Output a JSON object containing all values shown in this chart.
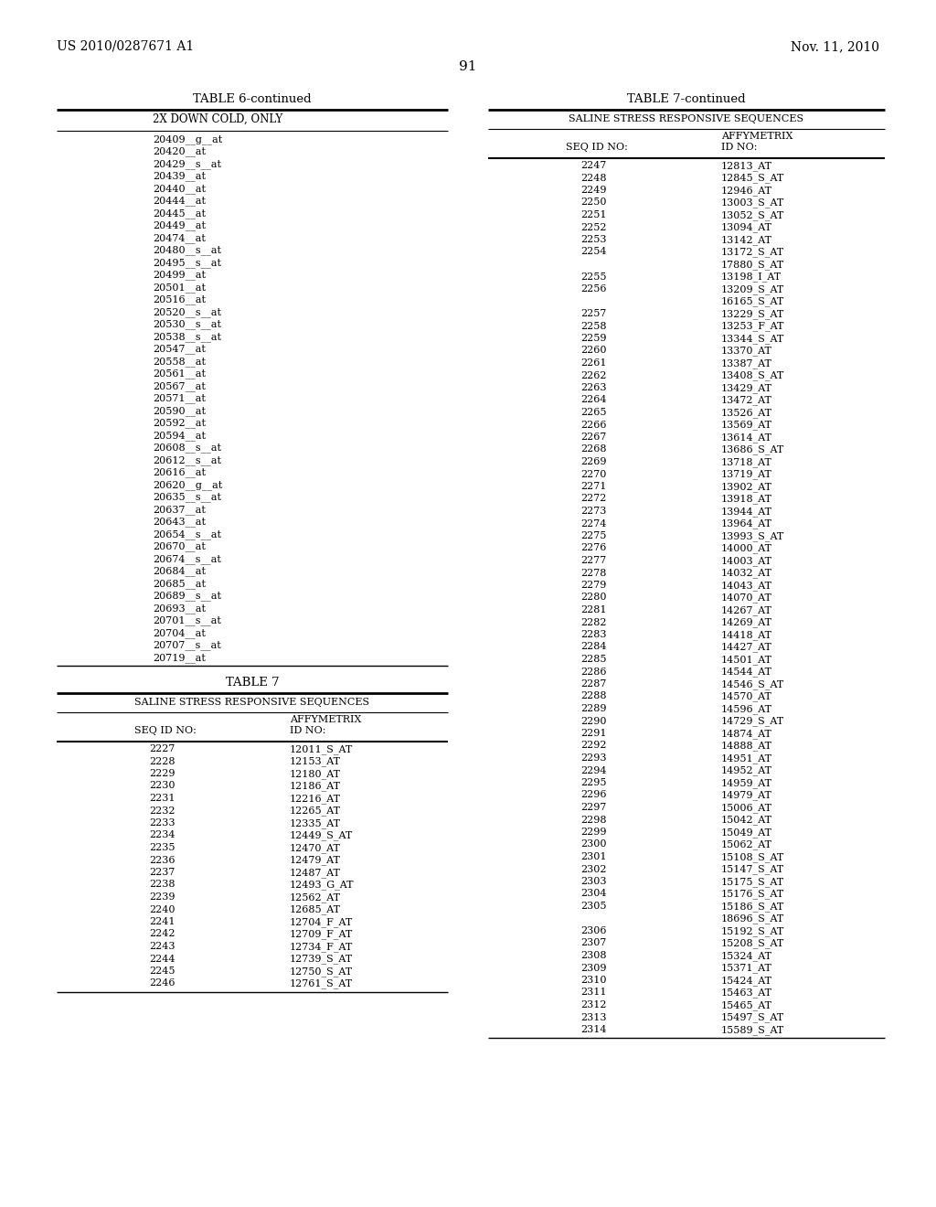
{
  "header_left": "US 2010/0287671 A1",
  "header_right": "Nov. 11, 2010",
  "page_number": "91",
  "background_color": "#ffffff",
  "text_color": "#000000",
  "table6_title": "TABLE 6-continued",
  "table6_subtitle": "2X DOWN COLD, ONLY",
  "table6_data": [
    "20409__g__at",
    "20420__at",
    "20429__s__at",
    "20439__at",
    "20440__at",
    "20444__at",
    "20445__at",
    "20449__at",
    "20474__at",
    "20480__s__at",
    "20495__s__at",
    "20499__at",
    "20501__at",
    "20516__at",
    "20520__s__at",
    "20530__s__at",
    "20538__s__at",
    "20547__at",
    "20558__at",
    "20561__at",
    "20567__at",
    "20571__at",
    "20590__at",
    "20592__at",
    "20594__at",
    "20608__s__at",
    "20612__s__at",
    "20616__at",
    "20620__g__at",
    "20635__s__at",
    "20637__at",
    "20643__at",
    "20654__s__at",
    "20670__at",
    "20674__s__at",
    "20684__at",
    "20685__at",
    "20689__s__at",
    "20693__at",
    "20701__s__at",
    "20704__at",
    "20707__s__at",
    "20719__at"
  ],
  "table7_title": "TABLE 7",
  "table7_subtitle": "SALINE STRESS RESPONSIVE SEQUENCES",
  "table7_col1_header": "SEQ ID NO:",
  "table7_col2_header_line1": "AFFYMETRIX",
  "table7_col2_header_line2": "ID NO:",
  "table7_data": [
    [
      "2227",
      "12011_S_AT"
    ],
    [
      "2228",
      "12153_AT"
    ],
    [
      "2229",
      "12180_AT"
    ],
    [
      "2230",
      "12186_AT"
    ],
    [
      "2231",
      "12216_AT"
    ],
    [
      "2232",
      "12265_AT"
    ],
    [
      "2233",
      "12335_AT"
    ],
    [
      "2234",
      "12449_S_AT"
    ],
    [
      "2235",
      "12470_AT"
    ],
    [
      "2236",
      "12479_AT"
    ],
    [
      "2237",
      "12487_AT"
    ],
    [
      "2238",
      "12493_G_AT"
    ],
    [
      "2239",
      "12562_AT"
    ],
    [
      "2240",
      "12685_AT"
    ],
    [
      "2241",
      "12704_F_AT"
    ],
    [
      "2242",
      "12709_F_AT"
    ],
    [
      "2243",
      "12734_F_AT"
    ],
    [
      "2244",
      "12739_S_AT"
    ],
    [
      "2245",
      "12750_S_AT"
    ],
    [
      "2246",
      "12761_S_AT"
    ]
  ],
  "table7cont_title": "TABLE 7-continued",
  "table7cont_subtitle": "SALINE STRESS RESPONSIVE SEQUENCES",
  "table7cont_col1_header": "SEQ ID NO:",
  "table7cont_col2_header_line1": "AFFYMETRIX",
  "table7cont_col2_header_line2": "ID NO:",
  "table7cont_data": [
    [
      "2247",
      "12813_AT"
    ],
    [
      "2248",
      "12845_S_AT"
    ],
    [
      "2249",
      "12946_AT"
    ],
    [
      "2250",
      "13003_S_AT"
    ],
    [
      "2251",
      "13052_S_AT"
    ],
    [
      "2252",
      "13094_AT"
    ],
    [
      "2253",
      "13142_AT"
    ],
    [
      "2254",
      "13172_S_AT"
    ],
    [
      "",
      "17880_S_AT"
    ],
    [
      "2255",
      "13198_I_AT"
    ],
    [
      "2256",
      "13209_S_AT"
    ],
    [
      "",
      "16165_S_AT"
    ],
    [
      "2257",
      "13229_S_AT"
    ],
    [
      "2258",
      "13253_F_AT"
    ],
    [
      "2259",
      "13344_S_AT"
    ],
    [
      "2260",
      "13370_AT"
    ],
    [
      "2261",
      "13387_AT"
    ],
    [
      "2262",
      "13408_S_AT"
    ],
    [
      "2263",
      "13429_AT"
    ],
    [
      "2264",
      "13472_AT"
    ],
    [
      "2265",
      "13526_AT"
    ],
    [
      "2266",
      "13569_AT"
    ],
    [
      "2267",
      "13614_AT"
    ],
    [
      "2268",
      "13686_S_AT"
    ],
    [
      "2269",
      "13718_AT"
    ],
    [
      "2270",
      "13719_AT"
    ],
    [
      "2271",
      "13902_AT"
    ],
    [
      "2272",
      "13918_AT"
    ],
    [
      "2273",
      "13944_AT"
    ],
    [
      "2274",
      "13964_AT"
    ],
    [
      "2275",
      "13993_S_AT"
    ],
    [
      "2276",
      "14000_AT"
    ],
    [
      "2277",
      "14003_AT"
    ],
    [
      "2278",
      "14032_AT"
    ],
    [
      "2279",
      "14043_AT"
    ],
    [
      "2280",
      "14070_AT"
    ],
    [
      "2281",
      "14267_AT"
    ],
    [
      "2282",
      "14269_AT"
    ],
    [
      "2283",
      "14418_AT"
    ],
    [
      "2284",
      "14427_AT"
    ],
    [
      "2285",
      "14501_AT"
    ],
    [
      "2286",
      "14544_AT"
    ],
    [
      "2287",
      "14546_S_AT"
    ],
    [
      "2288",
      "14570_AT"
    ],
    [
      "2289",
      "14596_AT"
    ],
    [
      "2290",
      "14729_S_AT"
    ],
    [
      "2291",
      "14874_AT"
    ],
    [
      "2292",
      "14888_AT"
    ],
    [
      "2293",
      "14951_AT"
    ],
    [
      "2294",
      "14952_AT"
    ],
    [
      "2295",
      "14959_AT"
    ],
    [
      "2296",
      "14979_AT"
    ],
    [
      "2297",
      "15006_AT"
    ],
    [
      "2298",
      "15042_AT"
    ],
    [
      "2299",
      "15049_AT"
    ],
    [
      "2300",
      "15062_AT"
    ],
    [
      "2301",
      "15108_S_AT"
    ],
    [
      "2302",
      "15147_S_AT"
    ],
    [
      "2303",
      "15175_S_AT"
    ],
    [
      "2304",
      "15176_S_AT"
    ],
    [
      "2305",
      "15186_S_AT"
    ],
    [
      "",
      "18696_S_AT"
    ],
    [
      "2306",
      "15192_S_AT"
    ],
    [
      "2307",
      "15208_S_AT"
    ],
    [
      "2308",
      "15324_AT"
    ],
    [
      "2309",
      "15371_AT"
    ],
    [
      "2310",
      "15424_AT"
    ],
    [
      "2311",
      "15463_AT"
    ],
    [
      "2312",
      "15465_AT"
    ],
    [
      "2313",
      "15497_S_AT"
    ],
    [
      "2314",
      "15589_S_AT"
    ]
  ]
}
